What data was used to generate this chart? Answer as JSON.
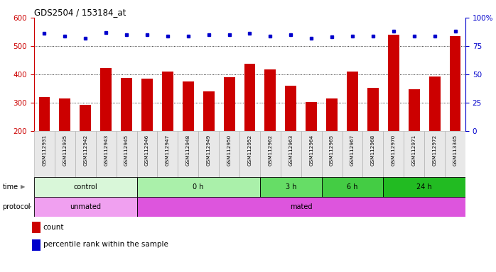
{
  "title": "GDS2504 / 153184_at",
  "samples": [
    "GSM112931",
    "GSM112935",
    "GSM112942",
    "GSM112943",
    "GSM112945",
    "GSM112946",
    "GSM112947",
    "GSM112948",
    "GSM112949",
    "GSM112950",
    "GSM112952",
    "GSM112962",
    "GSM112963",
    "GSM112964",
    "GSM112965",
    "GSM112967",
    "GSM112968",
    "GSM112970",
    "GSM112971",
    "GSM112972",
    "GSM113345"
  ],
  "counts": [
    320,
    315,
    292,
    422,
    388,
    385,
    410,
    375,
    340,
    390,
    438,
    418,
    360,
    302,
    315,
    410,
    353,
    540,
    348,
    392,
    535
  ],
  "percentile_ranks": [
    86,
    84,
    82,
    87,
    85,
    85,
    84,
    84,
    85,
    85,
    86,
    84,
    85,
    82,
    83,
    84,
    84,
    88,
    84,
    84,
    88
  ],
  "bar_color": "#cc0000",
  "dot_color": "#0000cc",
  "ylim_left": [
    200,
    600
  ],
  "ylim_right": [
    0,
    100
  ],
  "yticks_left": [
    200,
    300,
    400,
    500,
    600
  ],
  "yticks_right": [
    0,
    25,
    50,
    75,
    100
  ],
  "grid_values": [
    300,
    400,
    500
  ],
  "background_color": "#ffffff",
  "time_groups": [
    {
      "label": "control",
      "start": 0,
      "end": 5,
      "color": "#d9f7d9"
    },
    {
      "label": "0 h",
      "start": 5,
      "end": 11,
      "color": "#aaf0aa"
    },
    {
      "label": "3 h",
      "start": 11,
      "end": 14,
      "color": "#66dd66"
    },
    {
      "label": "6 h",
      "start": 14,
      "end": 17,
      "color": "#44cc44"
    },
    {
      "label": "24 h",
      "start": 17,
      "end": 21,
      "color": "#22bb22"
    }
  ],
  "protocol_groups": [
    {
      "label": "unmated",
      "start": 0,
      "end": 5,
      "color": "#f0a0f0"
    },
    {
      "label": "mated",
      "start": 5,
      "end": 21,
      "color": "#dd55dd"
    }
  ],
  "tick_color_left": "#cc0000",
  "tick_color_right": "#0000cc"
}
